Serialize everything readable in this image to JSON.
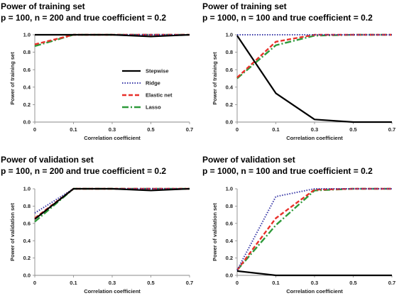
{
  "chart_data": [
    {
      "type": "line",
      "title": "Power of training set",
      "subtitle": "p = 100, n = 200 and true coefficient = 0.2",
      "xlabel": "Correlation coefficient",
      "ylabel": "Power of training set",
      "x": [
        0,
        0.1,
        0.3,
        0.5,
        0.7
      ],
      "xticks": [
        "0",
        "0.1",
        "0.3",
        "0.5",
        "0.7"
      ],
      "ylim": [
        0,
        1
      ],
      "yticks": [
        "0.0",
        "0.2",
        "0.4",
        "0.6",
        "0.8",
        "1.0"
      ],
      "legend": "center-right",
      "series": [
        {
          "name": "Stepwise",
          "color": "#000000",
          "dash": "solid",
          "values": [
            1.0,
            1.0,
            1.0,
            0.98,
            1.0
          ]
        },
        {
          "name": "Ridge",
          "color": "#3a3aa8",
          "dash": "dotted",
          "values": [
            1.0,
            1.0,
            1.0,
            1.0,
            1.0
          ]
        },
        {
          "name": "Elastic net",
          "color": "#e8302a",
          "dash": "dashed",
          "values": [
            0.89,
            1.0,
            1.0,
            1.0,
            1.0
          ]
        },
        {
          "name": "Lasso",
          "color": "#2e9a3a",
          "dash": "dashdot",
          "values": [
            0.87,
            1.0,
            1.0,
            1.0,
            1.0
          ]
        }
      ]
    },
    {
      "type": "line",
      "title": "Power of training set",
      "subtitle": "p = 1000, n = 100 and true coefficient = 0.2",
      "xlabel": "Correlation coefficient",
      "ylabel": "Power of training set",
      "x": [
        0,
        0.1,
        0.3,
        0.5,
        0.7
      ],
      "xticks": [
        "0",
        "0.1",
        "0.3",
        "0.5",
        "0.7"
      ],
      "ylim": [
        0,
        1
      ],
      "yticks": [
        "0.0",
        "0.2",
        "0.4",
        "0.6",
        "0.8",
        "1.0"
      ],
      "series": [
        {
          "name": "Stepwise",
          "color": "#000000",
          "dash": "solid",
          "values": [
            0.99,
            0.33,
            0.03,
            0.0,
            0.0
          ]
        },
        {
          "name": "Ridge",
          "color": "#3a3aa8",
          "dash": "dotted",
          "values": [
            1.0,
            1.0,
            1.0,
            1.0,
            1.0
          ]
        },
        {
          "name": "Elastic net",
          "color": "#e8302a",
          "dash": "dashed",
          "values": [
            0.51,
            0.92,
            1.0,
            1.0,
            1.0
          ]
        },
        {
          "name": "Lasso",
          "color": "#2e9a3a",
          "dash": "dashdot",
          "values": [
            0.5,
            0.88,
            0.99,
            1.0,
            1.0
          ]
        }
      ]
    },
    {
      "type": "line",
      "title": "Power of validation set",
      "subtitle": "p = 100, n = 200 and true coefficient = 0.2",
      "xlabel": "Correlation coefficient",
      "ylabel": "Power of validation set",
      "x": [
        0,
        0.1,
        0.3,
        0.5,
        0.7
      ],
      "xticks": [
        "0",
        "0.1",
        "0.3",
        "0.5",
        "0.7"
      ],
      "ylim": [
        0,
        1
      ],
      "yticks": [
        "0.0",
        "0.2",
        "0.4",
        "0.6",
        "0.8",
        "1.0"
      ],
      "series": [
        {
          "name": "Stepwise",
          "color": "#000000",
          "dash": "solid",
          "values": [
            0.65,
            1.0,
            1.0,
            0.98,
            1.0
          ]
        },
        {
          "name": "Ridge",
          "color": "#3a3aa8",
          "dash": "dotted",
          "values": [
            0.72,
            1.0,
            1.0,
            1.0,
            1.0
          ]
        },
        {
          "name": "Elastic net",
          "color": "#e8302a",
          "dash": "dashed",
          "values": [
            0.66,
            1.0,
            1.0,
            1.0,
            1.0
          ]
        },
        {
          "name": "Lasso",
          "color": "#2e9a3a",
          "dash": "dashdot",
          "values": [
            0.62,
            1.0,
            1.0,
            1.0,
            1.0
          ]
        }
      ]
    },
    {
      "type": "line",
      "title": "Power of validation set",
      "subtitle": "p = 1000, n = 100 and true coefficient = 0.2",
      "xlabel": "Correlation coefficient",
      "ylabel": "Power of validation set",
      "x": [
        0,
        0.1,
        0.3,
        0.5,
        0.7
      ],
      "xticks": [
        "0",
        "0.1",
        "0.3",
        "0.5",
        "0.7"
      ],
      "ylim": [
        0,
        1
      ],
      "yticks": [
        "0.0",
        "0.2",
        "0.4",
        "0.6",
        "0.8",
        "1.0"
      ],
      "series": [
        {
          "name": "Stepwise",
          "color": "#000000",
          "dash": "solid",
          "values": [
            0.05,
            0.0,
            0.0,
            0.0,
            0.0
          ]
        },
        {
          "name": "Ridge",
          "color": "#3a3aa8",
          "dash": "dotted",
          "values": [
            0.06,
            0.91,
            1.0,
            1.0,
            1.0
          ]
        },
        {
          "name": "Elastic net",
          "color": "#e8302a",
          "dash": "dashed",
          "values": [
            0.06,
            0.66,
            0.99,
            1.0,
            1.0
          ]
        },
        {
          "name": "Lasso",
          "color": "#2e9a3a",
          "dash": "dashdot",
          "values": [
            0.06,
            0.58,
            0.98,
            1.0,
            1.0
          ]
        }
      ]
    }
  ]
}
